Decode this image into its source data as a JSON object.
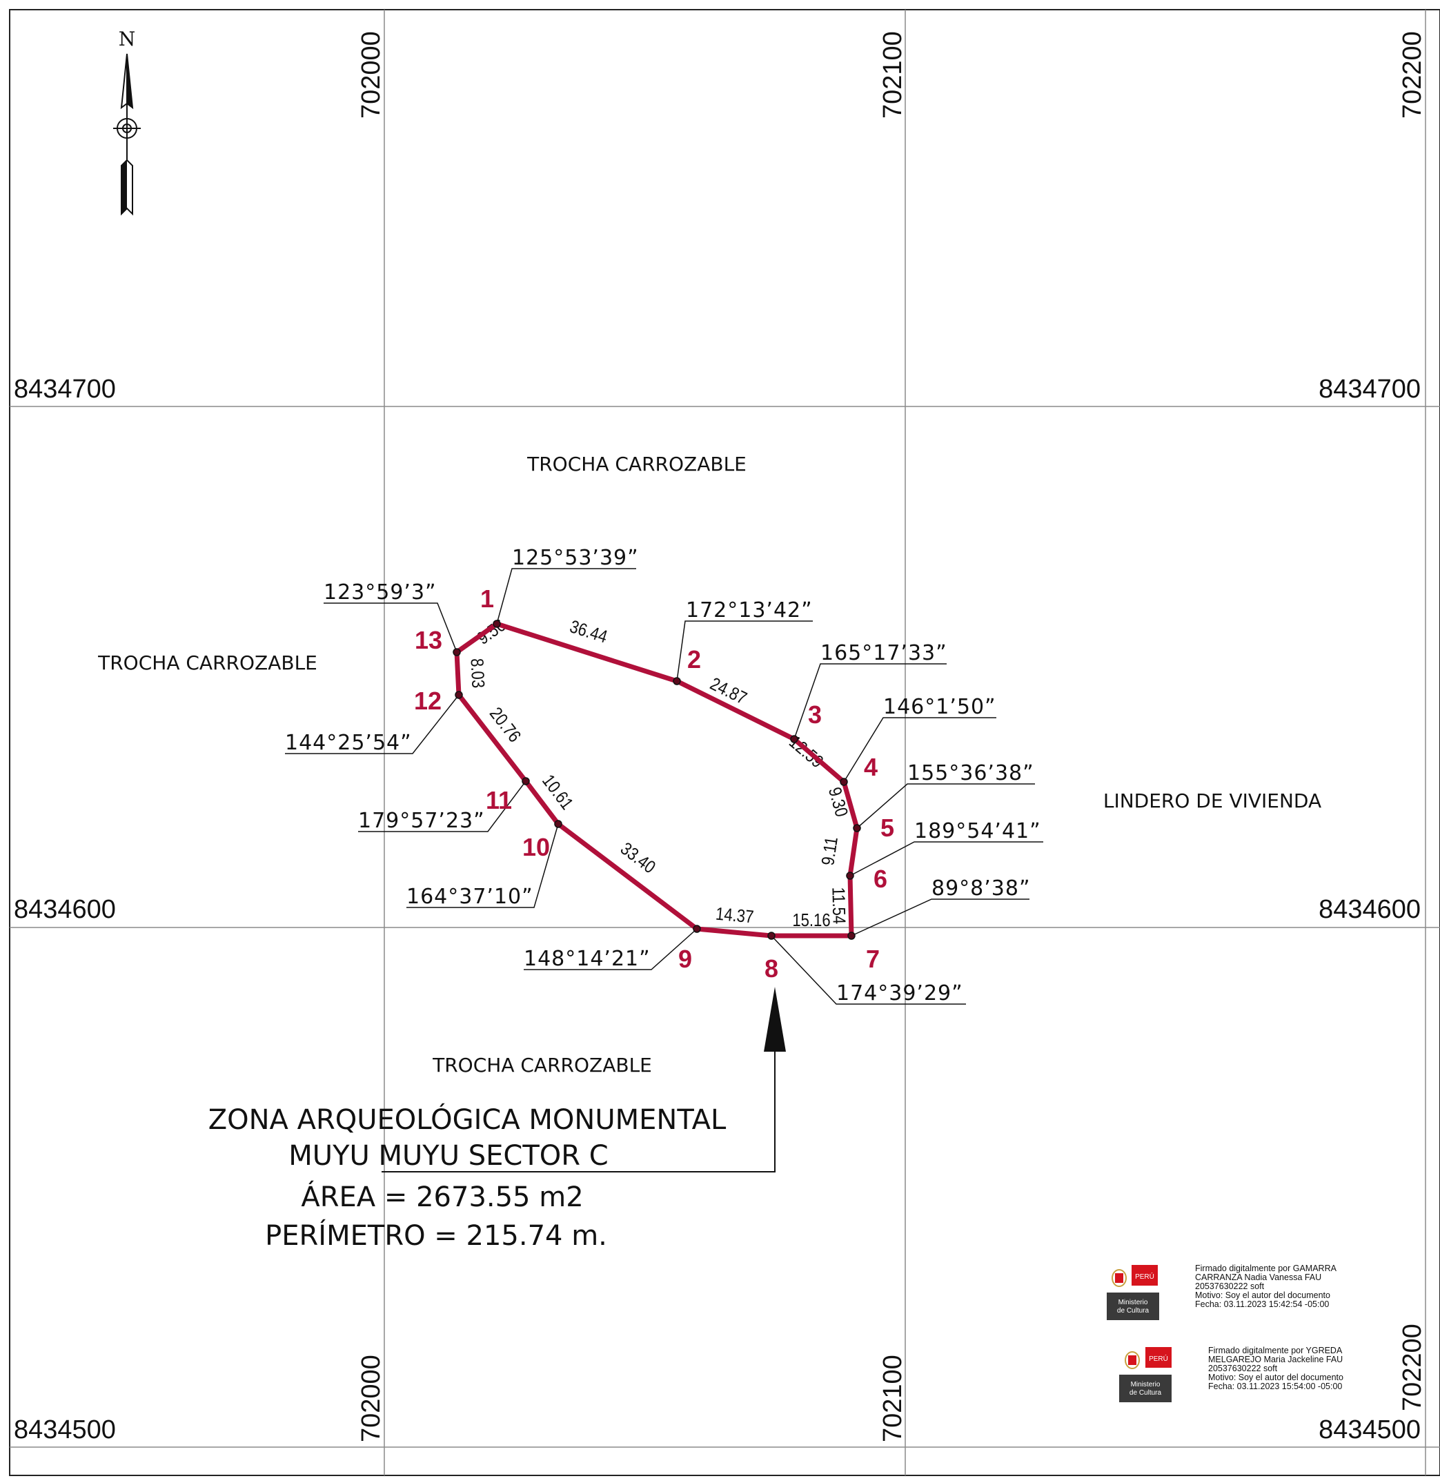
{
  "grid": {
    "easting_top": [
      "702000",
      "702100",
      "702200"
    ],
    "easting_bottom": [
      "702000",
      "702100",
      "702200"
    ],
    "northing_left": [
      "8434700",
      "8434600",
      "8434500"
    ],
    "northing_right": [
      "8434700",
      "8434600",
      "8434500"
    ]
  },
  "north_arrow": {
    "letter": "N"
  },
  "area_labels": {
    "top": "TROCHA CARROZABLE",
    "left": "TROCHA CARROZABLE",
    "bottom": "TROCHA CARROZABLE",
    "right": "LINDERO DE VIVIENDA"
  },
  "vertices": [
    {
      "id": "1",
      "angle": "125°53’39”"
    },
    {
      "id": "2",
      "angle": "172°13’42”"
    },
    {
      "id": "3",
      "angle": "165°17’33”"
    },
    {
      "id": "4",
      "angle": "146°1’50”"
    },
    {
      "id": "5",
      "angle": "155°36’38”"
    },
    {
      "id": "6",
      "angle": "189°54’41”"
    },
    {
      "id": "7",
      "angle": "89°8’38”"
    },
    {
      "id": "8",
      "angle": "174°39’29”"
    },
    {
      "id": "9",
      "angle": "148°14’21”"
    },
    {
      "id": "10",
      "angle": "164°37’10”"
    },
    {
      "id": "11",
      "angle": "179°57’23”"
    },
    {
      "id": "12",
      "angle": "144°25’54”"
    },
    {
      "id": "13",
      "angle": "123°59’3”"
    }
  ],
  "segments": [
    {
      "from": "1",
      "to": "2",
      "length": "36.44"
    },
    {
      "from": "2",
      "to": "3",
      "length": "24.87"
    },
    {
      "from": "3",
      "to": "4",
      "length": "12.59"
    },
    {
      "from": "4",
      "to": "5",
      "length": "9.30"
    },
    {
      "from": "5",
      "to": "6",
      "length": "9.11"
    },
    {
      "from": "6",
      "to": "7",
      "length": "11.54"
    },
    {
      "from": "7",
      "to": "8",
      "length": "15.16"
    },
    {
      "from": "8",
      "to": "9",
      "length": "14.37"
    },
    {
      "from": "9",
      "to": "10",
      "length": "33.40"
    },
    {
      "from": "10",
      "to": "11",
      "length": "10.61"
    },
    {
      "from": "11",
      "to": "12",
      "length": "20.76"
    },
    {
      "from": "12",
      "to": "13",
      "length": "8.03"
    },
    {
      "from": "13",
      "to": "1",
      "length": "9.56"
    }
  ],
  "title": {
    "line1": "ZONA ARQUEOLÓGICA MONUMENTAL",
    "line2": "MUYU MUYU SECTOR C",
    "area": "ÁREA = 2673.55 m2",
    "perimeter": "PERÍMETRO = 215.74 m."
  },
  "colors": {
    "boundary": "#b0103a",
    "grid": "#8a8a8a",
    "logo_red": "#d6141d",
    "logo_gray": "#3a3a3a"
  },
  "signatures": [
    {
      "logo_country": "PERÚ",
      "logo_ministry_1": "Ministerio",
      "logo_ministry_2": "de Cultura",
      "lines": [
        "Firmado digitalmente por GAMARRA",
        "CARRANZA Nadia Vanessa FAU",
        "20537630222 soft",
        "Motivo: Soy el autor del documento",
        "Fecha: 03.11.2023 15:42:54 -05:00"
      ]
    },
    {
      "logo_country": "PERÚ",
      "logo_ministry_1": "Ministerio",
      "logo_ministry_2": "de Cultura",
      "lines": [
        "Firmado digitalmente por YGREDA",
        "MELGAREJO Maria Jackeline FAU",
        "20537630222 soft",
        "Motivo: Soy el autor del documento",
        "Fecha: 03.11.2023 15:54:00 -05:00"
      ]
    }
  ]
}
